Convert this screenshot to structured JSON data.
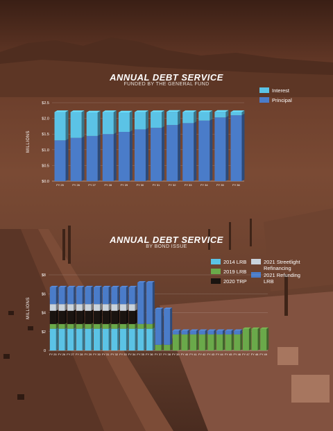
{
  "chart_data": [
    {
      "type": "bar",
      "title": "ANNUAL DEBT SERVICE",
      "subtitle": "FUNDED BY THE GENERAL FUND",
      "ylabel": "MILLIONS",
      "ylim": [
        0,
        2.5
      ],
      "yticks": [
        "$0.0",
        "$0.5",
        "$1.0",
        "$1.5",
        "$2.0",
        "$2.5"
      ],
      "categories": [
        "FY 25",
        "FY 26",
        "FY 27",
        "FY 28",
        "FY 29",
        "FY 30",
        "FY 31",
        "FY 32",
        "FY 33",
        "FY 34",
        "FY 35",
        "FY 36"
      ],
      "legend_position": "top-right",
      "series": [
        {
          "name": "Principal",
          "color": "#4a7cc9",
          "values": [
            1.3,
            1.38,
            1.44,
            1.5,
            1.57,
            1.65,
            1.7,
            1.79,
            1.85,
            1.93,
            2.03,
            2.1
          ]
        },
        {
          "name": "Interest",
          "color": "#5bc3e6",
          "values": [
            0.9,
            0.82,
            0.75,
            0.7,
            0.62,
            0.55,
            0.5,
            0.42,
            0.35,
            0.27,
            0.18,
            0.1
          ]
        }
      ]
    },
    {
      "type": "bar",
      "title": "ANNUAL DEBT SERVICE",
      "subtitle": "BY BOND ISSUE",
      "ylabel": "MILLIONS",
      "ylim": [
        0,
        8
      ],
      "yticks": [
        "0",
        "$2",
        "$4",
        "$6",
        "$8"
      ],
      "categories": [
        "FY 25",
        "FY 26",
        "FY 27",
        "FY 28",
        "FY 29",
        "FY 30",
        "FY 31",
        "FY 32",
        "FY 33",
        "FY 34",
        "FY 35",
        "FY 36",
        "FY 37",
        "FY 38",
        "FY 39",
        "FY 40",
        "FY 41",
        "FY 42",
        "FY 43",
        "FY 44",
        "FY 45",
        "FY 46",
        "FY 47",
        "FY 48",
        "FY 49"
      ],
      "legend_position": "top-right",
      "series": [
        {
          "name": "2014 LRB",
          "color": "#5bc3e6",
          "values": [
            2.3,
            2.3,
            2.3,
            2.3,
            2.3,
            2.3,
            2.3,
            2.3,
            2.3,
            2.3,
            2.3,
            2.3,
            0,
            0,
            0,
            0,
            0,
            0,
            0,
            0,
            0,
            0,
            0,
            0,
            0
          ]
        },
        {
          "name": "2019 LRB",
          "color": "#6aa94a",
          "values": [
            0.5,
            0.5,
            0.5,
            0.5,
            0.5,
            0.5,
            0.5,
            0.5,
            0.5,
            0.5,
            0.5,
            0.5,
            0.6,
            0.6,
            1.7,
            1.7,
            1.7,
            1.7,
            1.7,
            1.7,
            1.7,
            1.7,
            2.3,
            2.3,
            2.3
          ]
        },
        {
          "name": "2020 TRP",
          "color": "#1a1410",
          "values": [
            1.4,
            1.4,
            1.4,
            1.4,
            1.4,
            1.4,
            1.4,
            1.4,
            1.4,
            1.4,
            0,
            0,
            0,
            0,
            0,
            0,
            0,
            0,
            0,
            0,
            0,
            0,
            0,
            0,
            0
          ]
        },
        {
          "name": "2021 Streetlight Refinancing",
          "color": "#c9d3dc",
          "values": [
            0.7,
            0.7,
            0.7,
            0.7,
            0.7,
            0.7,
            0.7,
            0.7,
            0.7,
            0.7,
            0,
            0,
            0,
            0,
            0,
            0,
            0,
            0,
            0,
            0,
            0,
            0,
            0,
            0,
            0
          ]
        },
        {
          "name": "2021 Refunding LRB",
          "color": "#4a7cc9",
          "values": [
            1.8,
            1.8,
            1.8,
            1.8,
            1.8,
            1.8,
            1.8,
            1.8,
            1.8,
            1.8,
            4.4,
            4.4,
            3.8,
            3.8,
            0.4,
            0.4,
            0.4,
            0.4,
            0.4,
            0.4,
            0.4,
            0.4,
            0,
            0,
            0
          ]
        }
      ]
    }
  ]
}
